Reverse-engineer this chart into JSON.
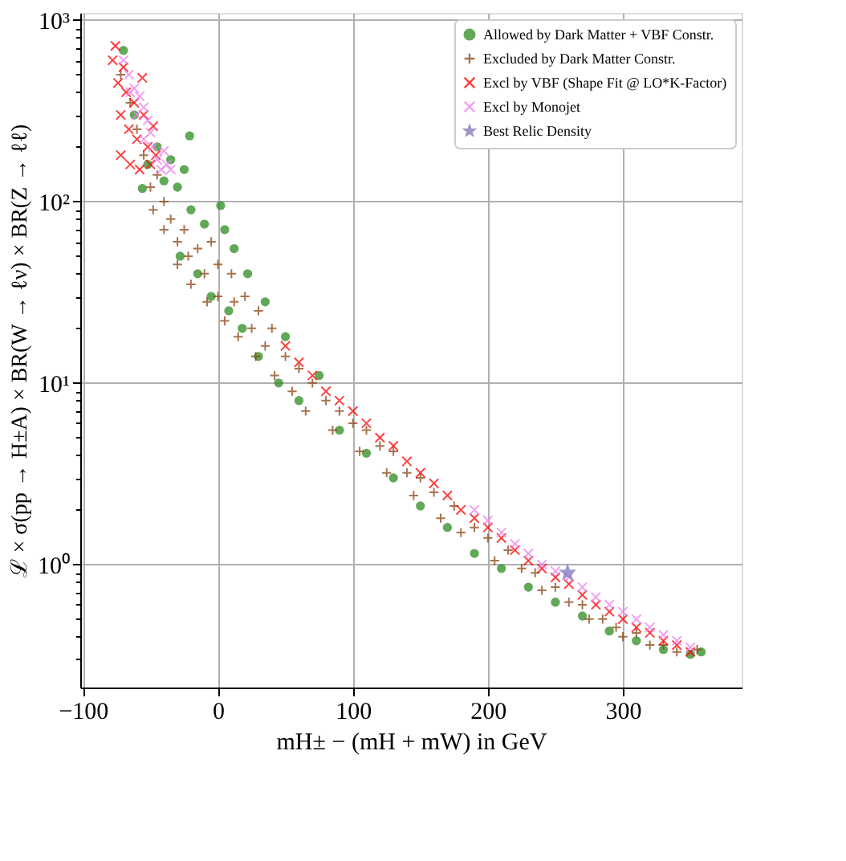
{
  "chart_data": {
    "type": "scatter",
    "xlabel": "mH± − (mH + mW) in GeV",
    "ylabel": "ℒ × σ(pp → H±A) × BR(W → ℓν) × BR(Z → ℓℓ)",
    "log": "y",
    "grid": true,
    "legend": "top right",
    "xlim": [
      -102,
      388
    ],
    "xticks": [
      {
        "value": -100,
        "label": "−100"
      },
      0,
      100,
      200,
      300
    ],
    "ylim": [
      0.21,
      1095
    ],
    "yticks": [
      {
        "value": 0.3,
        "label": null
      },
      {
        "value": 0.4,
        "label": null
      },
      {
        "value": 0.5,
        "label": null
      },
      {
        "value": 0.6,
        "label": null
      },
      {
        "value": 0.7,
        "label": null
      },
      {
        "value": 0.8,
        "label": null
      },
      {
        "value": 0.9,
        "label": null
      },
      {
        "value": 1,
        "label": "10⁰"
      },
      {
        "value": 2,
        "label": null
      },
      {
        "value": 3,
        "label": null
      },
      {
        "value": 4,
        "label": null
      },
      {
        "value": 5,
        "label": null
      },
      {
        "value": 6,
        "label": null
      },
      {
        "value": 7,
        "label": null
      },
      {
        "value": 8,
        "label": null
      },
      {
        "value": 9,
        "label": null
      },
      {
        "value": 10,
        "label": "10¹"
      },
      {
        "value": 20,
        "label": null
      },
      {
        "value": 30,
        "label": null
      },
      {
        "value": 40,
        "label": null
      },
      {
        "value": 50,
        "label": null
      },
      {
        "value": 60,
        "label": null
      },
      {
        "value": 70,
        "label": null
      },
      {
        "value": 80,
        "label": null
      },
      {
        "value": 90,
        "label": null
      },
      {
        "value": 100,
        "label": "10²"
      },
      {
        "value": 200,
        "label": null
      },
      {
        "value": 300,
        "label": null
      },
      {
        "value": 400,
        "label": null
      },
      {
        "value": 500,
        "label": null
      },
      {
        "value": 600,
        "label": null
      },
      {
        "value": 700,
        "label": null
      },
      {
        "value": 800,
        "label": null
      },
      {
        "value": 900,
        "label": null
      },
      {
        "value": 1000,
        "label": "10³"
      }
    ],
    "series": [
      {
        "name": "Allowed by Dark Matter + VBF Constr.",
        "color": "#2e8b22",
        "marker": "circle",
        "x": [
          -70,
          -62,
          -56,
          -52,
          -45,
          -40,
          -35,
          -30,
          -25,
          -21,
          -28,
          -20,
          -15,
          -10,
          -5,
          2,
          5,
          8,
          12,
          18,
          22,
          30,
          35,
          45,
          50,
          60,
          75,
          90,
          110,
          130,
          150,
          170,
          190,
          210,
          230,
          250,
          270,
          290,
          310,
          330,
          350,
          358
        ],
        "values": [
          680,
          300,
          118,
          160,
          200,
          130,
          170,
          120,
          150,
          230,
          50,
          90,
          40,
          75,
          30,
          95,
          70,
          25,
          55,
          20,
          40,
          14,
          28,
          10,
          18,
          8,
          11,
          5.5,
          4.1,
          3,
          2.1,
          1.6,
          1.15,
          0.95,
          0.75,
          0.62,
          0.52,
          0.43,
          0.38,
          0.34,
          0.32,
          0.33
        ]
      },
      {
        "name": "Excluded by Dark Matter Constr.",
        "color": "#8b4513",
        "marker": "plus",
        "x": [
          -72,
          -65,
          -60,
          -55,
          -50,
          -48,
          -45,
          -40,
          -40,
          -35,
          -30,
          -30,
          -25,
          -22,
          -20,
          -15,
          -10,
          -8,
          -5,
          0,
          0,
          5,
          10,
          12,
          15,
          20,
          25,
          28,
          30,
          35,
          40,
          42,
          50,
          55,
          60,
          65,
          70,
          80,
          85,
          90,
          100,
          105,
          110,
          120,
          125,
          130,
          140,
          145,
          150,
          160,
          165,
          175,
          180,
          190,
          200,
          205,
          215,
          225,
          235,
          240,
          250,
          260,
          270,
          275,
          285,
          295,
          300,
          310,
          320,
          330,
          340,
          355
        ],
        "values": [
          500,
          350,
          250,
          180,
          120,
          90,
          140,
          100,
          70,
          80,
          60,
          45,
          70,
          50,
          35,
          55,
          40,
          28,
          60,
          45,
          30,
          22,
          40,
          28,
          18,
          30,
          20,
          14,
          25,
          16,
          20,
          11,
          14,
          9,
          12,
          7,
          10,
          8,
          5.5,
          7,
          6,
          4.2,
          5.5,
          4.5,
          3.2,
          4.2,
          3.2,
          2.4,
          3,
          2.5,
          1.8,
          2.1,
          1.5,
          1.6,
          1.4,
          1.05,
          1.2,
          0.95,
          0.9,
          0.72,
          0.75,
          0.62,
          0.6,
          0.5,
          0.5,
          0.45,
          0.4,
          0.42,
          0.36,
          0.36,
          0.33,
          0.34
        ]
      },
      {
        "name": "Excl by VBF (Shape Fit @ LO*K-Factor)",
        "color": "#ff0000",
        "marker": "cross",
        "x": [
          -78,
          -76,
          -74,
          -72,
          -72,
          -70,
          -68,
          -66,
          -65,
          -62,
          -60,
          -58,
          -56,
          -55,
          -52,
          -50,
          -48,
          -46,
          50,
          60,
          70,
          80,
          90,
          100,
          110,
          120,
          130,
          140,
          150,
          160,
          170,
          180,
          190,
          200,
          210,
          220,
          230,
          240,
          250,
          260,
          270,
          280,
          290,
          300,
          310,
          320,
          330,
          340,
          350
        ],
        "values": [
          600,
          720,
          450,
          300,
          180,
          550,
          400,
          250,
          160,
          350,
          220,
          150,
          480,
          300,
          200,
          160,
          260,
          180,
          16,
          13,
          11,
          9,
          8,
          7,
          6,
          5,
          4.5,
          3.7,
          3.2,
          2.8,
          2.4,
          2,
          1.8,
          1.6,
          1.4,
          1.2,
          1.05,
          0.95,
          0.85,
          0.78,
          0.68,
          0.6,
          0.55,
          0.5,
          0.45,
          0.42,
          0.38,
          0.36,
          0.33
        ]
      },
      {
        "name": "Excl by Monojet",
        "color": "#ee82ee",
        "marker": "cross",
        "x": [
          -70,
          -66,
          -62,
          -58,
          -55,
          -52,
          -50,
          -48,
          -45,
          -42,
          -40,
          -38,
          -55,
          -60,
          -65,
          -35,
          190,
          200,
          210,
          220,
          230,
          240,
          250,
          260,
          270,
          280,
          290,
          300,
          310,
          320,
          330,
          340,
          350
        ],
        "values": [
          600,
          500,
          420,
          380,
          330,
          280,
          240,
          200,
          170,
          150,
          190,
          160,
          220,
          300,
          400,
          150,
          2,
          1.75,
          1.5,
          1.3,
          1.15,
          1.0,
          0.92,
          0.85,
          0.75,
          0.66,
          0.6,
          0.55,
          0.5,
          0.45,
          0.41,
          0.38,
          0.35
        ]
      },
      {
        "name": "Best Relic Density",
        "color": "#7b74b8",
        "marker": "star",
        "x": [
          259
        ],
        "values": [
          0.9
        ]
      }
    ]
  }
}
